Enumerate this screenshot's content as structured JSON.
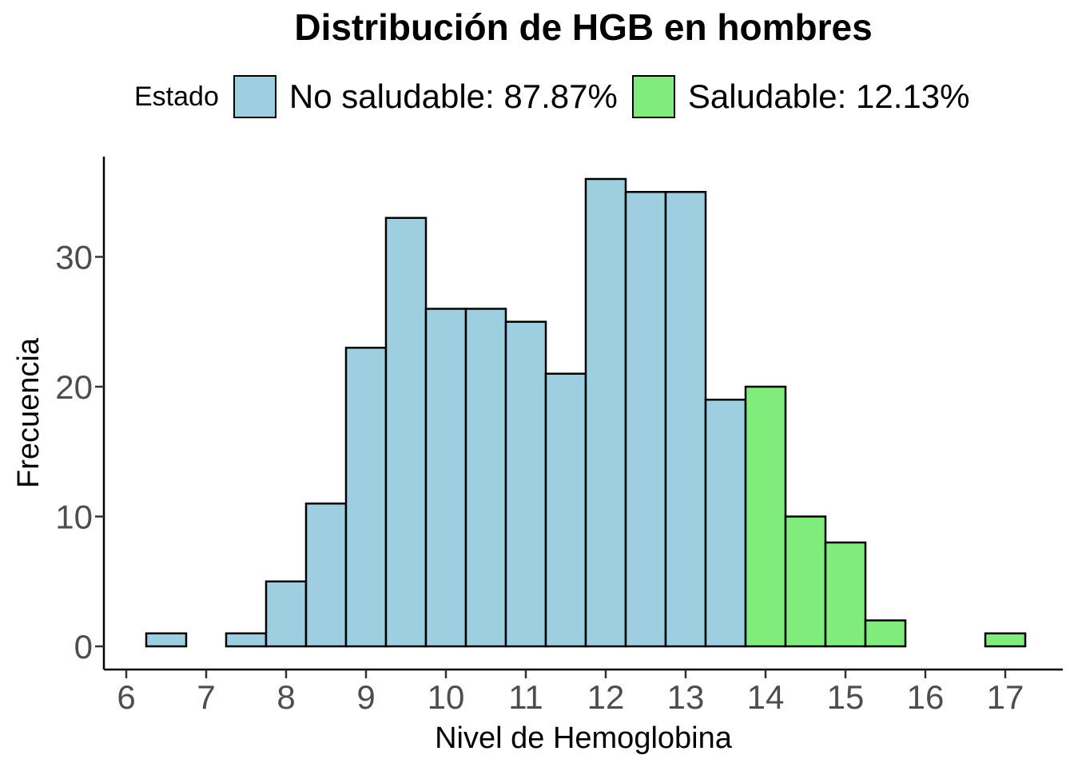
{
  "title": "Distribución de HGB en hombres",
  "legend": {
    "title": "Estado",
    "items": [
      {
        "label": "No saludable: 87.87%",
        "color": "#9ecfe0"
      },
      {
        "label": "Saludable: 12.13%",
        "color": "#80ec7c"
      }
    ]
  },
  "chart_data": {
    "type": "bar",
    "title": "Distribución de HGB en hombres",
    "xlabel": "Nivel de Hemoglobina",
    "ylabel": "Frecuencia",
    "xlim": [
      6,
      17.5
    ],
    "ylim": [
      0,
      36
    ],
    "x_ticks": [
      6,
      7,
      8,
      9,
      10,
      11,
      12,
      13,
      14,
      15,
      16,
      17
    ],
    "y_ticks": [
      0,
      10,
      20,
      30
    ],
    "grid": false,
    "legend_position": "top",
    "bin_width": 0.5,
    "series": [
      {
        "name": "No saludable: 87.87%",
        "color": "#9ecfe0",
        "bins": [
          {
            "x0": 6.25,
            "x1": 6.75,
            "count": 1
          },
          {
            "x0": 6.75,
            "x1": 7.25,
            "count": 0
          },
          {
            "x0": 7.25,
            "x1": 7.75,
            "count": 1
          },
          {
            "x0": 7.75,
            "x1": 8.25,
            "count": 5
          },
          {
            "x0": 8.25,
            "x1": 8.75,
            "count": 11
          },
          {
            "x0": 8.75,
            "x1": 9.25,
            "count": 23
          },
          {
            "x0": 9.25,
            "x1": 9.75,
            "count": 33
          },
          {
            "x0": 9.75,
            "x1": 10.25,
            "count": 26
          },
          {
            "x0": 10.25,
            "x1": 10.75,
            "count": 26
          },
          {
            "x0": 10.75,
            "x1": 11.25,
            "count": 25
          },
          {
            "x0": 11.25,
            "x1": 11.75,
            "count": 21
          },
          {
            "x0": 11.75,
            "x1": 12.25,
            "count": 36
          },
          {
            "x0": 12.25,
            "x1": 12.75,
            "count": 35
          },
          {
            "x0": 12.75,
            "x1": 13.25,
            "count": 35
          },
          {
            "x0": 13.25,
            "x1": 13.75,
            "count": 19
          }
        ]
      },
      {
        "name": "Saludable: 12.13%",
        "color": "#80ec7c",
        "bins": [
          {
            "x0": 13.75,
            "x1": 14.25,
            "count": 20
          },
          {
            "x0": 14.25,
            "x1": 14.75,
            "count": 10
          },
          {
            "x0": 14.75,
            "x1": 15.25,
            "count": 8
          },
          {
            "x0": 15.25,
            "x1": 15.75,
            "count": 2
          },
          {
            "x0": 15.75,
            "x1": 16.25,
            "count": 0
          },
          {
            "x0": 16.25,
            "x1": 16.75,
            "count": 0
          },
          {
            "x0": 16.75,
            "x1": 17.25,
            "count": 1
          }
        ]
      }
    ]
  }
}
